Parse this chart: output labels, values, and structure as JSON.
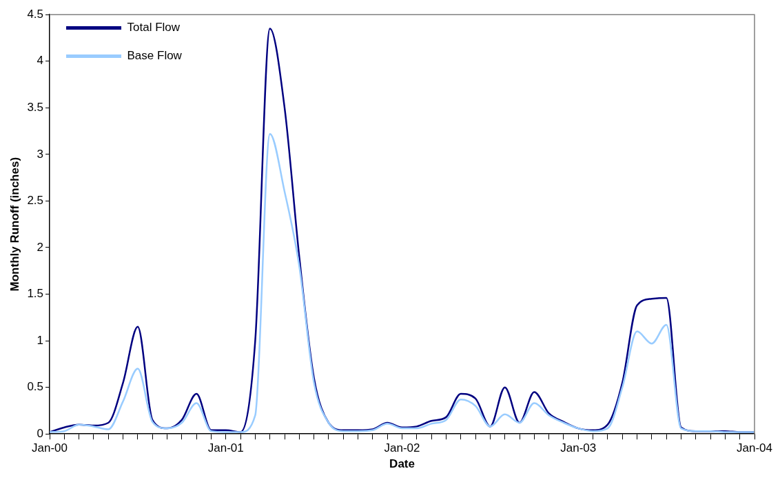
{
  "chart_data": {
    "type": "line",
    "xlabel": "Date",
    "ylabel": "Monthly Runoff (inches)",
    "x": [
      "2000-01",
      "2000-02",
      "2000-03",
      "2000-04",
      "2000-05",
      "2000-06",
      "2000-07",
      "2000-08",
      "2000-09",
      "2000-10",
      "2000-11",
      "2000-12",
      "2001-01",
      "2001-02",
      "2001-03",
      "2001-04",
      "2001-05",
      "2001-06",
      "2001-07",
      "2001-08",
      "2001-09",
      "2001-10",
      "2001-11",
      "2001-12",
      "2002-01",
      "2002-02",
      "2002-03",
      "2002-04",
      "2002-05",
      "2002-06",
      "2002-07",
      "2002-08",
      "2002-09",
      "2002-10",
      "2002-11",
      "2002-12",
      "2003-01",
      "2003-02",
      "2003-03",
      "2003-04",
      "2003-05",
      "2003-06",
      "2003-07",
      "2003-08",
      "2003-09",
      "2003-10",
      "2003-11",
      "2003-12",
      "2004-01"
    ],
    "series": [
      {
        "name": "Total Flow",
        "color": "#000080",
        "values": [
          0.02,
          0.07,
          0.1,
          0.09,
          0.12,
          0.55,
          1.15,
          0.15,
          0.06,
          0.15,
          0.43,
          0.04,
          0.04,
          0.02,
          1.0,
          4.35,
          3.5,
          1.9,
          0.6,
          0.12,
          0.04,
          0.04,
          0.05,
          0.12,
          0.07,
          0.08,
          0.14,
          0.18,
          0.43,
          0.38,
          0.08,
          0.5,
          0.12,
          0.45,
          0.22,
          0.13,
          0.06,
          0.04,
          0.1,
          0.55,
          1.38,
          1.45,
          1.46,
          0.07,
          0.03,
          0.03,
          0.03,
          0.02,
          0.02
        ]
      },
      {
        "name": "Base Flow",
        "color": "#99ccff",
        "values": [
          0.02,
          0.03,
          0.1,
          0.08,
          0.05,
          0.35,
          0.7,
          0.13,
          0.06,
          0.12,
          0.33,
          0.03,
          0.02,
          0.02,
          0.2,
          3.22,
          2.6,
          1.8,
          0.55,
          0.12,
          0.03,
          0.03,
          0.04,
          0.11,
          0.06,
          0.06,
          0.11,
          0.15,
          0.37,
          0.3,
          0.08,
          0.21,
          0.12,
          0.33,
          0.2,
          0.12,
          0.06,
          0.03,
          0.06,
          0.5,
          1.1,
          0.97,
          1.17,
          0.06,
          0.03,
          0.03,
          0.02,
          0.02,
          0.02
        ]
      }
    ],
    "xlim": [
      "2000-01",
      "2004-01"
    ],
    "xticks": [
      {
        "value": "2000-01",
        "label": "Jan-00"
      },
      {
        "value": "2000-02",
        "label": null
      },
      {
        "value": "2000-03",
        "label": null
      },
      {
        "value": "2000-04",
        "label": null
      },
      {
        "value": "2000-05",
        "label": null
      },
      {
        "value": "2000-06",
        "label": null
      },
      {
        "value": "2000-07",
        "label": null
      },
      {
        "value": "2000-08",
        "label": null
      },
      {
        "value": "2000-09",
        "label": null
      },
      {
        "value": "2000-10",
        "label": null
      },
      {
        "value": "2000-11",
        "label": null
      },
      {
        "value": "2000-12",
        "label": null
      },
      {
        "value": "2001-01",
        "label": "Jan-01"
      },
      {
        "value": "2001-02",
        "label": null
      },
      {
        "value": "2001-03",
        "label": null
      },
      {
        "value": "2001-04",
        "label": null
      },
      {
        "value": "2001-05",
        "label": null
      },
      {
        "value": "2001-06",
        "label": null
      },
      {
        "value": "2001-07",
        "label": null
      },
      {
        "value": "2001-08",
        "label": null
      },
      {
        "value": "2001-09",
        "label": null
      },
      {
        "value": "2001-10",
        "label": null
      },
      {
        "value": "2001-11",
        "label": null
      },
      {
        "value": "2001-12",
        "label": null
      },
      {
        "value": "2002-01",
        "label": "Jan-02"
      },
      {
        "value": "2002-02",
        "label": null
      },
      {
        "value": "2002-03",
        "label": null
      },
      {
        "value": "2002-04",
        "label": null
      },
      {
        "value": "2002-05",
        "label": null
      },
      {
        "value": "2002-06",
        "label": null
      },
      {
        "value": "2002-07",
        "label": null
      },
      {
        "value": "2002-08",
        "label": null
      },
      {
        "value": "2002-09",
        "label": null
      },
      {
        "value": "2002-10",
        "label": null
      },
      {
        "value": "2002-11",
        "label": null
      },
      {
        "value": "2002-12",
        "label": null
      },
      {
        "value": "2003-01",
        "label": "Jan-03"
      },
      {
        "value": "2003-02",
        "label": null
      },
      {
        "value": "2003-03",
        "label": null
      },
      {
        "value": "2003-04",
        "label": null
      },
      {
        "value": "2003-05",
        "label": null
      },
      {
        "value": "2003-06",
        "label": null
      },
      {
        "value": "2003-07",
        "label": null
      },
      {
        "value": "2003-08",
        "label": null
      },
      {
        "value": "2003-09",
        "label": null
      },
      {
        "value": "2003-10",
        "label": null
      },
      {
        "value": "2003-11",
        "label": null
      },
      {
        "value": "2003-12",
        "label": null
      },
      {
        "value": "2004-01",
        "label": "Jan-04"
      }
    ],
    "ylim": [
      0,
      4.5
    ],
    "yticks": [
      0,
      0.5,
      1,
      1.5,
      2,
      2.5,
      3,
      3.5,
      4,
      4.5
    ],
    "grid": false,
    "legend": "top left",
    "marker": "none",
    "line_style": "solid"
  }
}
